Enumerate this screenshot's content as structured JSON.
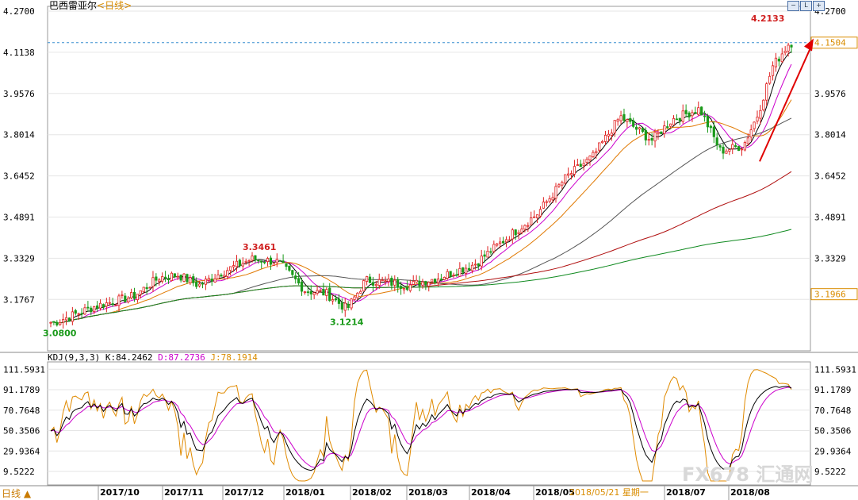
{
  "header": {
    "title": "巴西雷亚尔",
    "period": "<日线>",
    "buttons": [
      "−",
      "L",
      "+"
    ]
  },
  "kdj_header": {
    "params": "KDJ(9,3,3)",
    "k": "K:84.2462",
    "d": "D:87.2736",
    "j": "J:78.1914"
  },
  "period_button": "日线",
  "watermark": "FX678 汇通网",
  "colors": {
    "up": "#e02020",
    "down": "#1a9a1a",
    "ma5": "#000000",
    "ma10": "#cc00cc",
    "ma20": "#e07800",
    "ma60": "#555555",
    "ma120": "#b01010",
    "ma250": "#108a20",
    "arrow": "#e00000",
    "grid": "#e6e6e6"
  },
  "chart_data": [
    {
      "type": "candlestick",
      "title": "巴西雷亚尔<日线>",
      "ylim": [
        3.0,
        4.27
      ],
      "y_ticks": [
        "4.2700",
        "4.1138",
        "3.9576",
        "3.8014",
        "3.6452",
        "3.4891",
        "3.3329",
        "3.1767"
      ],
      "right_ticks": [
        "4.2700",
        "3.9576",
        "3.8014",
        "3.6452",
        "3.4891",
        "3.3329"
      ],
      "x_ticks": [
        "2017/10",
        "2017/11",
        "2017/12",
        "2018/01",
        "2018/02",
        "2018/03",
        "2018/04",
        "2018/05",
        "2018/07",
        "2018/08"
      ],
      "cursor_label": "2018/05/21 星期一",
      "annotations": [
        {
          "label": "4.2133",
          "value": 4.2133,
          "note": "period high"
        },
        {
          "label": "3.3461",
          "value": 3.3461,
          "note": "local high"
        },
        {
          "label": "3.1214",
          "value": 3.1214,
          "note": "local low"
        },
        {
          "label": "3.0800",
          "value": 3.08,
          "note": "period low"
        }
      ],
      "price_tags": [
        {
          "label": "4.1504",
          "value": 4.1504
        },
        {
          "label": "3.1966",
          "value": 3.1966
        }
      ],
      "dashed_line": 4.1504,
      "trend_arrow": {
        "from": [
          3.7,
          "2018/08"
        ],
        "to": [
          4.16,
          "2018/08"
        ]
      },
      "close_anchors": [
        {
          "date": "2017/09/12",
          "close": 3.09
        },
        {
          "date": "2017/10/01",
          "close": 3.15
        },
        {
          "date": "2017/10/20",
          "close": 3.19
        },
        {
          "date": "2017/11/01",
          "close": 3.26
        },
        {
          "date": "2017/11/10",
          "close": 3.27
        },
        {
          "date": "2017/11/20",
          "close": 3.23
        },
        {
          "date": "2017/12/01",
          "close": 3.28
        },
        {
          "date": "2017/12/15",
          "close": 3.33
        },
        {
          "date": "2017/12/28",
          "close": 3.32
        },
        {
          "date": "2018/01/10",
          "close": 3.21
        },
        {
          "date": "2018/01/20",
          "close": 3.2
        },
        {
          "date": "2018/01/30",
          "close": 3.14
        },
        {
          "date": "2018/02/08",
          "close": 3.25
        },
        {
          "date": "2018/02/20",
          "close": 3.24
        },
        {
          "date": "2018/03/01",
          "close": 3.23
        },
        {
          "date": "2018/03/15",
          "close": 3.26
        },
        {
          "date": "2018/04/01",
          "close": 3.31
        },
        {
          "date": "2018/04/15",
          "close": 3.4
        },
        {
          "date": "2018/05/01",
          "close": 3.5
        },
        {
          "date": "2018/05/15",
          "close": 3.64
        },
        {
          "date": "2018/05/28",
          "close": 3.72
        },
        {
          "date": "2018/06/10",
          "close": 3.87
        },
        {
          "date": "2018/06/25",
          "close": 3.78
        },
        {
          "date": "2018/07/05",
          "close": 3.86
        },
        {
          "date": "2018/07/18",
          "close": 3.9
        },
        {
          "date": "2018/07/28",
          "close": 3.74
        },
        {
          "date": "2018/08/08",
          "close": 3.76
        },
        {
          "date": "2018/08/15",
          "close": 3.88
        },
        {
          "date": "2018/08/22",
          "close": 4.06
        },
        {
          "date": "2018/08/30",
          "close": 4.15
        }
      ]
    },
    {
      "type": "line",
      "title": "KDJ(9,3,3)",
      "ylim": [
        0,
        115
      ],
      "y_ticks": [
        "111.5931",
        "91.1789",
        "70.7648",
        "50.3506",
        "29.9364",
        "9.5222"
      ],
      "right_ticks": [
        "111.5931",
        "91.1789",
        "70.7648",
        "50.3506",
        "29.9364",
        "9.5222"
      ],
      "series": [
        {
          "name": "K",
          "last": 84.2462
        },
        {
          "name": "D",
          "last": 87.2736
        },
        {
          "name": "J",
          "last": 78.1914
        }
      ]
    }
  ]
}
